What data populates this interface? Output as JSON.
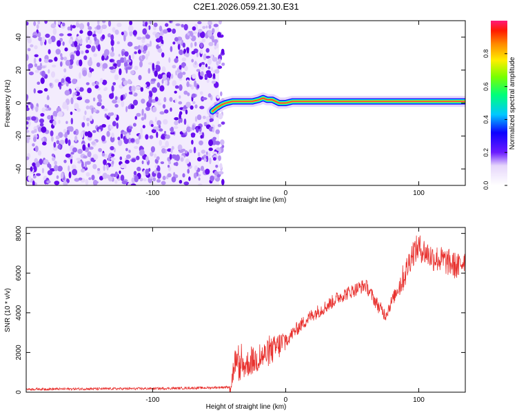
{
  "title": "C2E1.2026.059.21.30.E31",
  "colors": {
    "line": "#e8312e",
    "axis": "#000000"
  },
  "chart_data": [
    {
      "type": "heatmap",
      "name": "spectrogram",
      "xlabel": "Height of straight line (km)",
      "ylabel": "Frequency (Hz)",
      "xlim": [
        -195,
        135
      ],
      "ylim": [
        -50,
        50
      ],
      "xticks": [
        -100,
        0,
        100
      ],
      "xtick_labels": [
        "-100",
        "0",
        "100"
      ],
      "yticks": [
        -40,
        -20,
        0,
        20,
        40
      ],
      "ytick_labels": [
        "-40",
        "-20",
        "0",
        "20",
        "40"
      ],
      "noise_region_x": [
        -195,
        -50
      ],
      "signal_trace": {
        "x": [
          -55,
          -52,
          -48,
          -45,
          -40,
          -35,
          -30,
          -25,
          -20,
          -17,
          -14,
          -10,
          -5,
          0,
          5,
          10,
          20,
          40,
          60,
          80,
          100,
          120,
          135
        ],
        "y": [
          -5,
          -3,
          -1,
          0,
          1,
          1,
          1,
          1,
          2,
          3,
          2,
          2,
          0,
          0,
          1,
          1,
          1,
          1,
          1,
          1,
          1,
          1,
          1
        ]
      },
      "colorbar": {
        "label": "Normalized spectral amplitude",
        "range": [
          0,
          1
        ],
        "ticks": [
          0.0,
          0.2,
          0.4,
          0.6,
          0.8
        ],
        "tick_labels": [
          "0.0",
          "0.2",
          "0.4",
          "0.6",
          "0.8"
        ]
      }
    },
    {
      "type": "line",
      "name": "snr",
      "xlabel": "Height of straight line (km)",
      "ylabel": "SNR (10 * v/v)",
      "xlim": [
        -195,
        135
      ],
      "ylim": [
        0,
        8300
      ],
      "xticks": [
        -100,
        0,
        100
      ],
      "xtick_labels": [
        "-100",
        "0",
        "100"
      ],
      "yticks": [
        0,
        2000,
        4000,
        6000,
        8000
      ],
      "ytick_labels": [
        "0",
        "2000",
        "4000",
        "6000",
        "8000"
      ],
      "series": [
        {
          "name": "SNR",
          "x": [
            -195,
            -150,
            -100,
            -60,
            -42,
            -40,
            -38,
            -35,
            -30,
            -20,
            -10,
            0,
            10,
            20,
            30,
            40,
            50,
            60,
            70,
            75,
            80,
            90,
            95,
            100,
            110,
            120,
            130,
            135
          ],
          "y": [
            150,
            170,
            180,
            220,
            260,
            800,
            1600,
            1200,
            1400,
            1700,
            2100,
            2600,
            3300,
            3900,
            4300,
            4800,
            5100,
            5400,
            4300,
            3900,
            4600,
            6000,
            7000,
            7300,
            6800,
            6600,
            6300,
            6800
          ]
        }
      ]
    }
  ]
}
